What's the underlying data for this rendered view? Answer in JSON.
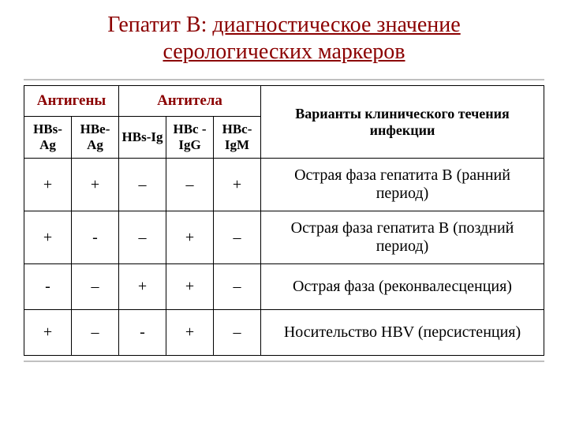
{
  "title": {
    "prefix": "Гепатит В:",
    "part1": "диагностическое значение",
    "part2": "серологических маркеров"
  },
  "headers": {
    "antigens": "Антигены",
    "antibodies": "Антитела",
    "variants": "Варианты клинического течения инфекции"
  },
  "subheaders": {
    "hbsag": "HBs-Ag",
    "hbeag": "HBe-Ag",
    "hbsig": "HBs-Ig",
    "hbcigg": "HBc -IgG",
    "hbcigm": "HBc-IgM"
  },
  "rows": [
    {
      "c1": "+",
      "c2": "+",
      "c3": "–",
      "c4": "–",
      "c5": "+",
      "desc": "Острая фаза гепатита В (ранний период)"
    },
    {
      "c1": "+",
      "c2": "-",
      "c3": "–",
      "c4": "+",
      "c5": "–",
      "desc": "Острая фаза гепатита В (поздний период)"
    },
    {
      "c1": "-",
      "c2": "–",
      "c3": "+",
      "c4": "+",
      "c5": "–",
      "desc": "Острая фаза (реконвалесценция)"
    },
    {
      "c1": "+",
      "c2": "–",
      "c3": "-",
      "c4": "+",
      "c5": "–",
      "desc": "Носительство HBV (персистенция)"
    }
  ],
  "styles": {
    "title_color": "#8b0000",
    "header_color": "#8b0000",
    "border_color": "#000000",
    "background": "#ffffff",
    "table_wrap_border": "#c0c0c0"
  }
}
